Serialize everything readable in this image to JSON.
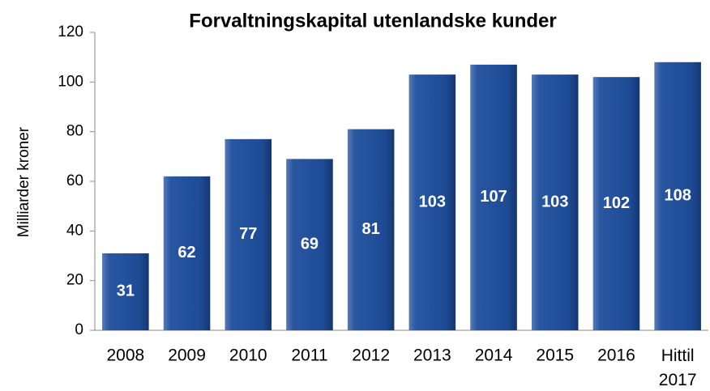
{
  "chart_data": {
    "type": "bar",
    "title": "Forvaltningskapital utenlandske kunder",
    "y_label": "Milliarder kroner",
    "categories": [
      "2008",
      "2009",
      "2010",
      "2011",
      "2012",
      "2013",
      "2014",
      "2015",
      "2016",
      "Hittil 2017"
    ],
    "values": [
      31,
      62,
      77,
      69,
      81,
      103,
      107,
      103,
      102,
      108
    ],
    "color": "#1f4e9c",
    "ylim": [
      0,
      120
    ],
    "yticks": [
      0,
      20,
      40,
      60,
      80,
      100,
      120
    ],
    "grid": false
  }
}
